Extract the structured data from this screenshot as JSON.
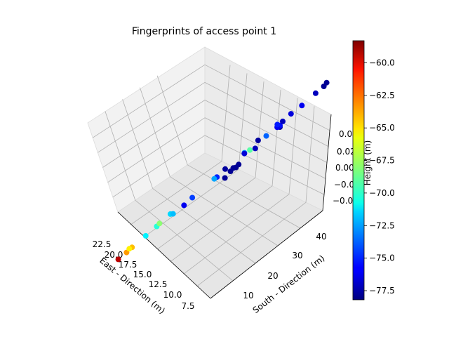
{
  "chart_data": {
    "type": "scatter",
    "projection": "3d",
    "title": "Fingerprints of access point 1",
    "xlabel": "East - Direction (m)",
    "ylabel": "South - Direction (m)",
    "zlabel": "Height (m)",
    "x_ticks": [
      "22.5",
      "20.0",
      "17.5",
      "15.0",
      "12.5",
      "10.0",
      "7.5"
    ],
    "y_ticks": [
      "10",
      "20",
      "30",
      "40"
    ],
    "z_ticks": [
      "0.04",
      "0.02",
      "0.00",
      "−0.02",
      "−0.04"
    ],
    "colorbar": {
      "cmap": "jet",
      "range": [
        -78.2,
        -58.3
      ],
      "ticks": [
        "−60.0",
        "−62.5",
        "−65.0",
        "−67.5",
        "−70.0",
        "−72.5",
        "−75.0",
        "−77.5"
      ]
    },
    "grid": true,
    "points": [
      {
        "x": 23.5,
        "y": 48,
        "z": 0,
        "rss": -77.8
      },
      {
        "x": 21.0,
        "y": 47,
        "z": 0,
        "rss": -77.8
      },
      {
        "x": 20.0,
        "y": 46,
        "z": 0,
        "rss": -77.8
      },
      {
        "x": 20.5,
        "y": 44,
        "z": 0,
        "rss": -77.8
      },
      {
        "x": 19.0,
        "y": 42,
        "z": 0,
        "rss": -77.8
      },
      {
        "x": 16.0,
        "y": 44,
        "z": 0,
        "rss": -77.0
      },
      {
        "x": 13.5,
        "y": 48,
        "z": 0,
        "rss": -77.6
      },
      {
        "x": 11.5,
        "y": 44,
        "z": 0,
        "rss": -75.5
      },
      {
        "x": 19.5,
        "y": 4,
        "z": 0,
        "rss": -63.8
      },
      {
        "x": 20.0,
        "y": 2,
        "z": 0,
        "rss": -59.5
      },
      {
        "x": 18.5,
        "y": 4,
        "z": 0,
        "rss": -64.5
      },
      {
        "x": 17.5,
        "y": 1,
        "z": 0,
        "rss": -65.5
      },
      {
        "x": 17.5,
        "y": 7,
        "z": 0,
        "rss": -71.0
      },
      {
        "x": 16.5,
        "y": 9,
        "z": 0,
        "rss": -70.0
      },
      {
        "x": 15.5,
        "y": 8,
        "z": 0,
        "rss": -68.0
      },
      {
        "x": 14.5,
        "y": 10,
        "z": 0,
        "rss": -71.5
      },
      {
        "x": 17.0,
        "y": 16,
        "z": 0,
        "rss": -72.0
      },
      {
        "x": 17.0,
        "y": 20,
        "z": 0,
        "rss": -76.0
      },
      {
        "x": 15.5,
        "y": 20,
        "z": 0,
        "rss": -74.5
      },
      {
        "x": 14.0,
        "y": 26,
        "z": 0,
        "rss": -75.0
      },
      {
        "x": 13.5,
        "y": 24,
        "z": 0,
        "rss": -72.5
      },
      {
        "x": 12.0,
        "y": 25,
        "z": 0,
        "rss": -77.6
      },
      {
        "x": 10.5,
        "y": 29,
        "z": 0,
        "rss": -72.8
      },
      {
        "x": 11.5,
        "y": 31,
        "z": 0,
        "rss": -76.5
      },
      {
        "x": 8.5,
        "y": 30,
        "z": 0,
        "rss": -77.6
      },
      {
        "x": 12.5,
        "y": 35,
        "z": 0,
        "rss": -69.0
      },
      {
        "x": 11.0,
        "y": 38,
        "z": 0,
        "rss": -73.8
      },
      {
        "x": 11.0,
        "y": 42,
        "z": 0,
        "rss": -76.0
      },
      {
        "x": 9.0,
        "y": 40,
        "z": 0,
        "rss": -77.0
      },
      {
        "x": 8.0,
        "y": 45,
        "z": 0,
        "rss": -76.0
      },
      {
        "x": 7.5,
        "y": 35,
        "z": 0,
        "rss": -75.2
      },
      {
        "x": 7.5,
        "y": 40,
        "z": 0,
        "rss": -76.4
      },
      {
        "x": 6.0,
        "y": 46,
        "z": 0,
        "rss": -77.0
      },
      {
        "x": 5.5,
        "y": 48,
        "z": 0,
        "rss": -77.8
      },
      {
        "x": 3.5,
        "y": 45,
        "z": 0,
        "rss": -77.8
      }
    ]
  }
}
